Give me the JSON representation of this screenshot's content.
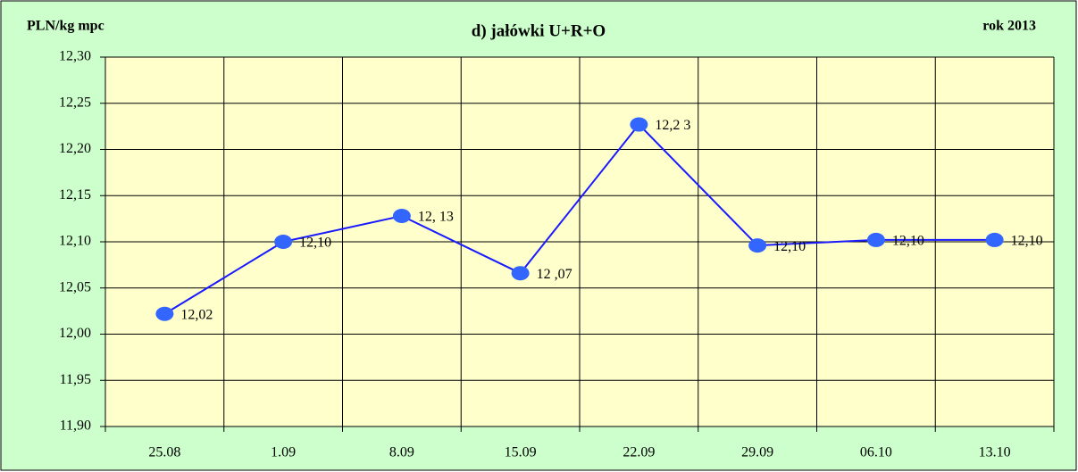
{
  "chart_data": {
    "type": "line",
    "title": "d) jałówki U+R+O",
    "y_axis_label": "PLN/kg mpc",
    "annotation": "rok 2013",
    "categories": [
      "25.08",
      "1.09",
      "8.09",
      "15.09",
      "22.09",
      "29.09",
      "06.10",
      "13.10"
    ],
    "values": [
      12.022,
      12.1,
      12.128,
      12.066,
      12.227,
      12.096,
      12.102,
      12.102
    ],
    "value_labels": [
      "12,02",
      "12,10",
      "12, 13",
      "12 ,07",
      "12,2 3",
      "12,10",
      "12,10",
      "12,10"
    ],
    "color": "#1a1aff",
    "marker_color": "#3366ff",
    "ylim": [
      11.9,
      12.3
    ],
    "yticks": [
      {
        "value": 11.9,
        "label": "11,90"
      },
      {
        "value": 11.95,
        "label": "11,95"
      },
      {
        "value": 12.0,
        "label": "12,00"
      },
      {
        "value": 12.05,
        "label": "12,05"
      },
      {
        "value": 12.1,
        "label": "12,10"
      },
      {
        "value": 12.15,
        "label": "12,15"
      },
      {
        "value": 12.2,
        "label": "12,20"
      },
      {
        "value": 12.25,
        "label": "12,25"
      },
      {
        "value": 12.3,
        "label": "12,30"
      }
    ],
    "grid": true
  }
}
